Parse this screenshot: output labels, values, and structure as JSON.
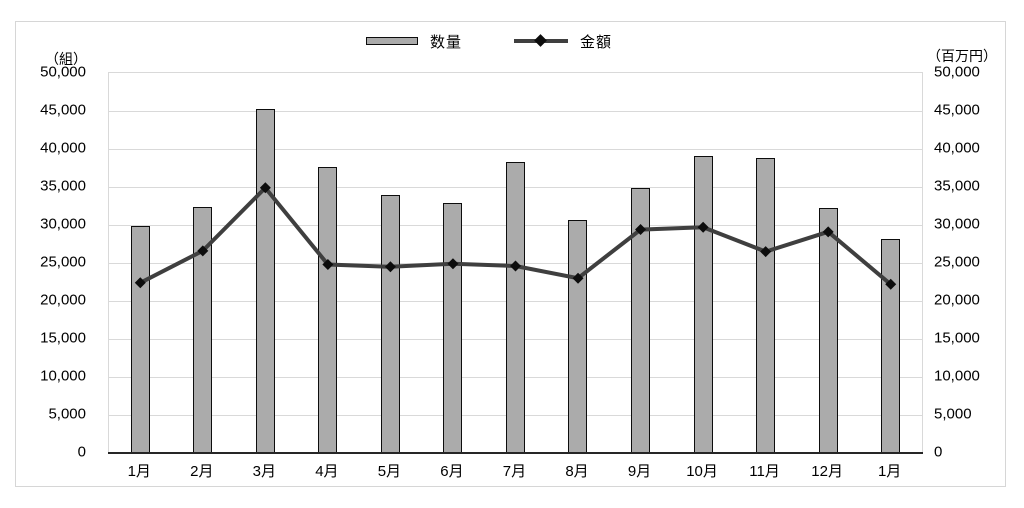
{
  "chart_data": {
    "type": "combo-bar-line",
    "title": "",
    "categories": [
      "1月",
      "2月",
      "3月",
      "4月",
      "5月",
      "6月",
      "7月",
      "8月",
      "9月",
      "10月",
      "11月",
      "12月",
      "1月"
    ],
    "series": [
      {
        "name": "数量",
        "type": "bar",
        "axis": "left",
        "values": [
          29900,
          32400,
          45300,
          37600,
          33900,
          32900,
          38300,
          30600,
          34900,
          39100,
          38800,
          32200,
          28100
        ]
      },
      {
        "name": "金額",
        "type": "line",
        "axis": "right",
        "marker": "diamond",
        "values": [
          22400,
          26600,
          34900,
          24800,
          24500,
          24900,
          24600,
          23000,
          29400,
          29700,
          26500,
          29100,
          22200
        ]
      }
    ],
    "left_axis": {
      "title": "（組）",
      "min": 0,
      "max": 50000,
      "step": 5000,
      "tick_labels": [
        "0",
        "5,000",
        "10,000",
        "15,000",
        "20,000",
        "25,000",
        "30,000",
        "35,000",
        "40,000",
        "45,000",
        "50,000"
      ]
    },
    "right_axis": {
      "title": "（百万円）",
      "min": 0,
      "max": 50000,
      "step": 5000,
      "tick_labels": [
        "0",
        "5,000",
        "10,000",
        "15,000",
        "20,000",
        "25,000",
        "30,000",
        "35,000",
        "40,000",
        "45,000",
        "50,000"
      ]
    },
    "legend": {
      "position": "top",
      "items": [
        "数量",
        "金額"
      ]
    },
    "grid": true
  },
  "colors": {
    "bar_fill": "#ababab",
    "bar_border": "#0d0d0d",
    "line": "#3f3f3f",
    "marker": "#0d0d0d",
    "grid": "#d9d9d9",
    "axis_line": "#262626",
    "frame_border": "#d6d6d6",
    "text": "#000000"
  }
}
